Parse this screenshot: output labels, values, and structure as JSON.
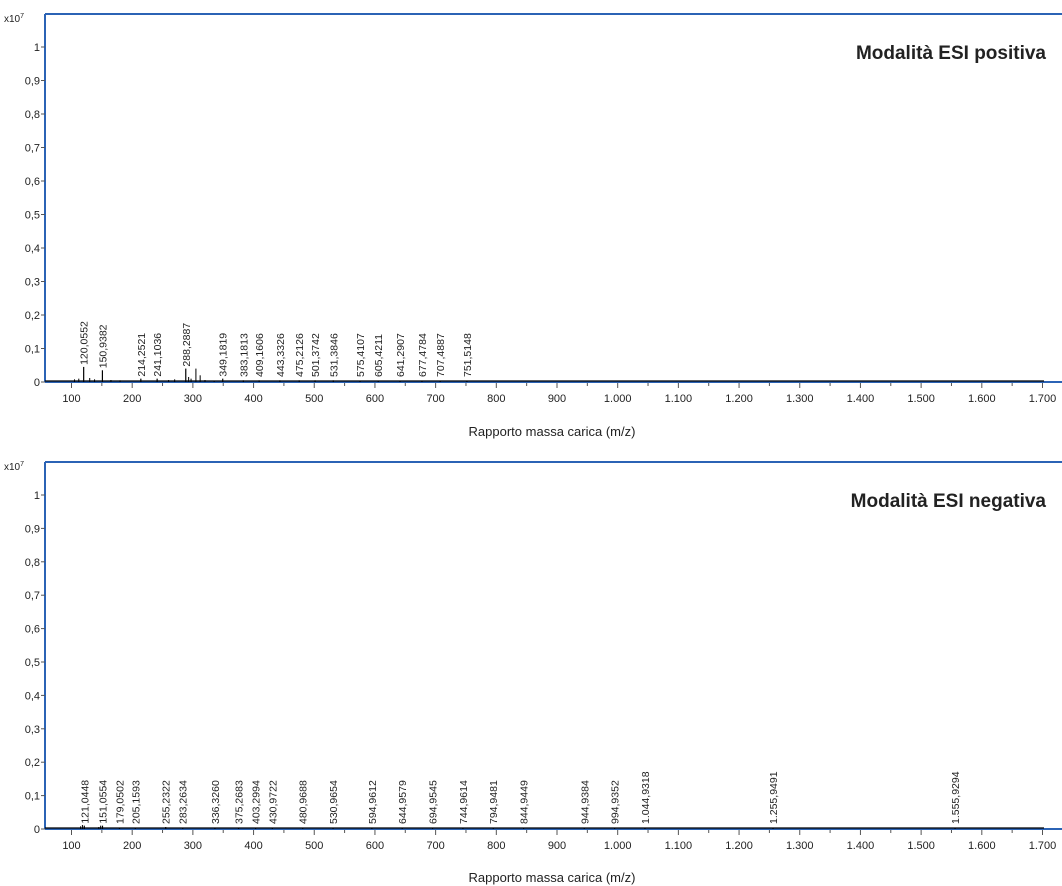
{
  "colors": {
    "frame": "#2b63b5",
    "axis": "#555555",
    "peak": "#000000",
    "text": "#222222"
  },
  "chart_data": [
    {
      "type": "bar",
      "title": "Modalità ESI positiva",
      "xlabel": "Rapporto massa carica (m/z)",
      "ylabel": "",
      "y_multiplier": "x10",
      "y_multiplier_exp": "7",
      "xlim": [
        60,
        1710
      ],
      "ylim": [
        0,
        1.0
      ],
      "x_ticks": [
        100,
        200,
        300,
        400,
        500,
        600,
        700,
        800,
        900,
        1000,
        1100,
        1200,
        1300,
        1400,
        1500,
        1600,
        1700
      ],
      "x_tick_labels": [
        "100",
        "200",
        "300",
        "400",
        "500",
        "600",
        "700",
        "800",
        "900",
        "1.000",
        "1.100",
        "1.200",
        "1.300",
        "1.400",
        "1.500",
        "1.600",
        "1.700"
      ],
      "y_ticks": [
        0,
        0.1,
        0.2,
        0.3,
        0.4,
        0.5,
        0.6,
        0.7,
        0.8,
        0.9,
        1.0
      ],
      "y_tick_labels": [
        "0",
        "0,1",
        "0,2",
        "0,3",
        "0,4",
        "0,5",
        "0,6",
        "0,7",
        "0,8",
        "0,9",
        "1"
      ],
      "peaks": [
        {
          "mz": 120.0552,
          "label": "120,0552",
          "intensity": 0.045
        },
        {
          "mz": 150.9382,
          "label": "150,9382",
          "intensity": 0.035
        },
        {
          "mz": 214.2521,
          "label": "214,2521",
          "intensity": 0.01
        },
        {
          "mz": 241.1036,
          "label": "241,1036",
          "intensity": 0.01
        },
        {
          "mz": 288.2887,
          "label": "288,2887",
          "intensity": 0.04
        },
        {
          "mz": 349.1819,
          "label": "349,1819",
          "intensity": 0.01
        },
        {
          "mz": 383.1813,
          "label": "383,1813",
          "intensity": 0.005
        },
        {
          "mz": 409.1606,
          "label": "409,1606",
          "intensity": 0.005
        },
        {
          "mz": 443.3326,
          "label": "443,3326",
          "intensity": 0.005
        },
        {
          "mz": 475.2126,
          "label": "475,2126",
          "intensity": 0.005
        },
        {
          "mz": 501.3742,
          "label": "501,3742",
          "intensity": 0.005
        },
        {
          "mz": 531.3846,
          "label": "531,3846",
          "intensity": 0.005
        },
        {
          "mz": 575.4107,
          "label": "575,4107",
          "intensity": 0.004
        },
        {
          "mz": 605.4211,
          "label": "605,4211",
          "intensity": 0.004
        },
        {
          "mz": 641.2907,
          "label": "641,2907",
          "intensity": 0.004
        },
        {
          "mz": 677.4784,
          "label": "677,4784",
          "intensity": 0.004
        },
        {
          "mz": 707.4887,
          "label": "707,4887",
          "intensity": 0.004
        },
        {
          "mz": 751.5148,
          "label": "751,5148",
          "intensity": 0.004
        }
      ],
      "minor_peaks": [
        {
          "mz": 105,
          "intensity": 0.008
        },
        {
          "mz": 112,
          "intensity": 0.01
        },
        {
          "mz": 130,
          "intensity": 0.012
        },
        {
          "mz": 138,
          "intensity": 0.008
        },
        {
          "mz": 165,
          "intensity": 0.006
        },
        {
          "mz": 180,
          "intensity": 0.005
        },
        {
          "mz": 260,
          "intensity": 0.006
        },
        {
          "mz": 270,
          "intensity": 0.008
        },
        {
          "mz": 293,
          "intensity": 0.015
        },
        {
          "mz": 297,
          "intensity": 0.01
        },
        {
          "mz": 305,
          "intensity": 0.04
        },
        {
          "mz": 312,
          "intensity": 0.02
        },
        {
          "mz": 320,
          "intensity": 0.006
        },
        {
          "mz": 335,
          "intensity": 0.004
        }
      ]
    },
    {
      "type": "bar",
      "title": "Modalità ESI negativa",
      "xlabel": "Rapporto massa carica (m/z)",
      "ylabel": "",
      "y_multiplier": "x10",
      "y_multiplier_exp": "7",
      "xlim": [
        60,
        1710
      ],
      "ylim": [
        0,
        1.0
      ],
      "x_ticks": [
        100,
        200,
        300,
        400,
        500,
        600,
        700,
        800,
        900,
        1000,
        1100,
        1200,
        1300,
        1400,
        1500,
        1600,
        1700
      ],
      "x_tick_labels": [
        "100",
        "200",
        "300",
        "400",
        "500",
        "600",
        "700",
        "800",
        "900",
        "1.000",
        "1.100",
        "1.200",
        "1.300",
        "1.400",
        "1.500",
        "1.600",
        "1.700"
      ],
      "y_ticks": [
        0,
        0.1,
        0.2,
        0.3,
        0.4,
        0.5,
        0.6,
        0.7,
        0.8,
        0.9,
        1.0
      ],
      "y_tick_labels": [
        "0",
        "0,1",
        "0,2",
        "0,3",
        "0,4",
        "0,5",
        "0,6",
        "0,7",
        "0,8",
        "0,9",
        "1"
      ],
      "peaks": [
        {
          "mz": 121.0448,
          "label": "121,0448",
          "intensity": 0.01
        },
        {
          "mz": 151.0554,
          "label": "151,0554",
          "intensity": 0.01
        },
        {
          "mz": 179.0502,
          "label": "179,0502",
          "intensity": 0.004
        },
        {
          "mz": 205.1593,
          "label": "205,1593",
          "intensity": 0.004
        },
        {
          "mz": 255.2322,
          "label": "255,2322",
          "intensity": 0.006
        },
        {
          "mz": 283.2634,
          "label": "283,2634",
          "intensity": 0.004
        },
        {
          "mz": 336.326,
          "label": "336,3260",
          "intensity": 0.003
        },
        {
          "mz": 375.2683,
          "label": "375,2683",
          "intensity": 0.003
        },
        {
          "mz": 403.2994,
          "label": "403,2994",
          "intensity": 0.003
        },
        {
          "mz": 430.9722,
          "label": "430,9722",
          "intensity": 0.003
        },
        {
          "mz": 480.9688,
          "label": "480,9688",
          "intensity": 0.003
        },
        {
          "mz": 530.9654,
          "label": "530,9654",
          "intensity": 0.003
        },
        {
          "mz": 594.9612,
          "label": "594,9612",
          "intensity": 0.003
        },
        {
          "mz": 644.9579,
          "label": "644,9579",
          "intensity": 0.003
        },
        {
          "mz": 694.9545,
          "label": "694,9545",
          "intensity": 0.003
        },
        {
          "mz": 744.9614,
          "label": "744,9614",
          "intensity": 0.003
        },
        {
          "mz": 794.9481,
          "label": "794,9481",
          "intensity": 0.003
        },
        {
          "mz": 844.9449,
          "label": "844,9449",
          "intensity": 0.003
        },
        {
          "mz": 944.9384,
          "label": "944,9384",
          "intensity": 0.003
        },
        {
          "mz": 994.9352,
          "label": "994,9352",
          "intensity": 0.003
        },
        {
          "mz": 1044.9318,
          "label": "1.044,9318",
          "intensity": 0.003
        },
        {
          "mz": 1255.9491,
          "label": "1.255,9491",
          "intensity": 0.003
        },
        {
          "mz": 1555.9294,
          "label": "1.555,9294",
          "intensity": 0.003
        }
      ],
      "minor_peaks": [
        {
          "mz": 115,
          "intensity": 0.008
        },
        {
          "mz": 118,
          "intensity": 0.012
        },
        {
          "mz": 145,
          "intensity": 0.006
        },
        {
          "mz": 148,
          "intensity": 0.01
        }
      ]
    }
  ]
}
